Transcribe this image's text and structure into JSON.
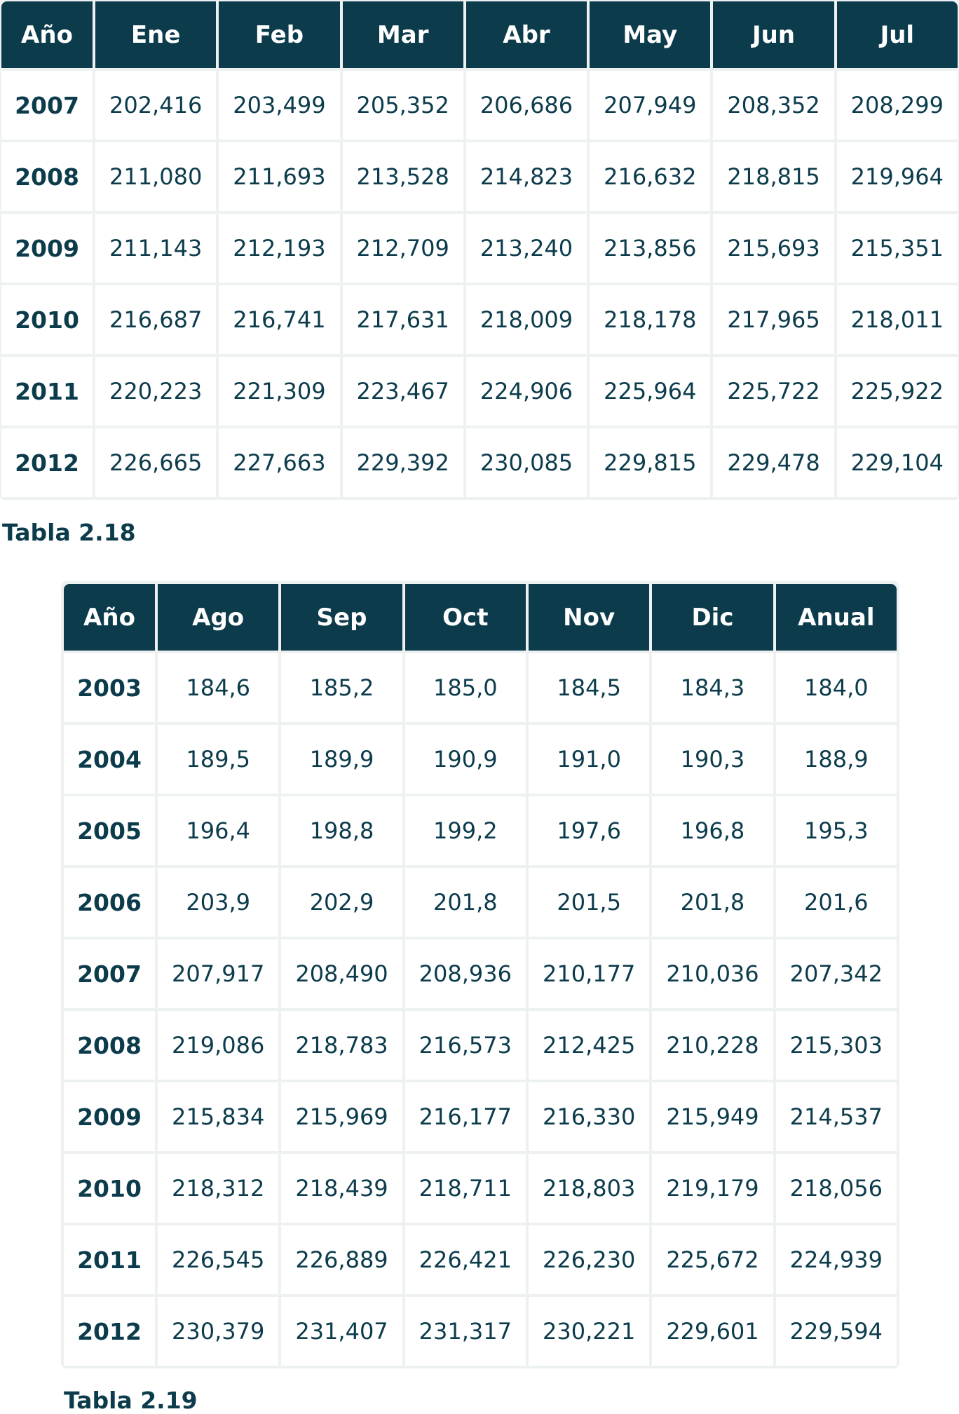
{
  "table1": {
    "headers": [
      "Año",
      "Ene",
      "Feb",
      "Mar",
      "Abr",
      "May",
      "Jun",
      "Jul"
    ],
    "rows": [
      [
        "2007",
        "202,416",
        "203,499",
        "205,352",
        "206,686",
        "207,949",
        "208,352",
        "208,299"
      ],
      [
        "2008",
        "211,080",
        "211,693",
        "213,528",
        "214,823",
        "216,632",
        "218,815",
        "219,964"
      ],
      [
        "2009",
        "211,143",
        "212,193",
        "212,709",
        "213,240",
        "213,856",
        "215,693",
        "215,351"
      ],
      [
        "2010",
        "216,687",
        "216,741",
        "217,631",
        "218,009",
        "218,178",
        "217,965",
        "218,011"
      ],
      [
        "2011",
        "220,223",
        "221,309",
        "223,467",
        "224,906",
        "225,964",
        "225,722",
        "225,922"
      ],
      [
        "2012",
        "226,665",
        "227,663",
        "229,392",
        "230,085",
        "229,815",
        "229,478",
        "229,104"
      ]
    ],
    "caption": "Tabla 2.18"
  },
  "table2": {
    "headers": [
      "Año",
      "Ago",
      "Sep",
      "Oct",
      "Nov",
      "Dic",
      "Anual"
    ],
    "rows": [
      [
        "2003",
        "184,6",
        "185,2",
        "185,0",
        "184,5",
        "184,3",
        "184,0"
      ],
      [
        "2004",
        "189,5",
        "189,9",
        "190,9",
        "191,0",
        "190,3",
        "188,9"
      ],
      [
        "2005",
        "196,4",
        "198,8",
        "199,2",
        "197,6",
        "196,8",
        "195,3"
      ],
      [
        "2006",
        "203,9",
        "202,9",
        "201,8",
        "201,5",
        "201,8",
        "201,6"
      ],
      [
        "2007",
        "207,917",
        "208,490",
        "208,936",
        "210,177",
        "210,036",
        "207,342"
      ],
      [
        "2008",
        "219,086",
        "218,783",
        "216,573",
        "212,425",
        "210,228",
        "215,303"
      ],
      [
        "2009",
        "215,834",
        "215,969",
        "216,177",
        "216,330",
        "215,949",
        "214,537"
      ],
      [
        "2010",
        "218,312",
        "218,439",
        "218,711",
        "218,803",
        "219,179",
        "218,056"
      ],
      [
        "2011",
        "226,545",
        "226,889",
        "226,421",
        "226,230",
        "225,672",
        "224,939"
      ],
      [
        "2012",
        "230,379",
        "231,407",
        "231,317",
        "230,221",
        "229,601",
        "229,594"
      ]
    ],
    "caption": "Tabla 2.19"
  }
}
